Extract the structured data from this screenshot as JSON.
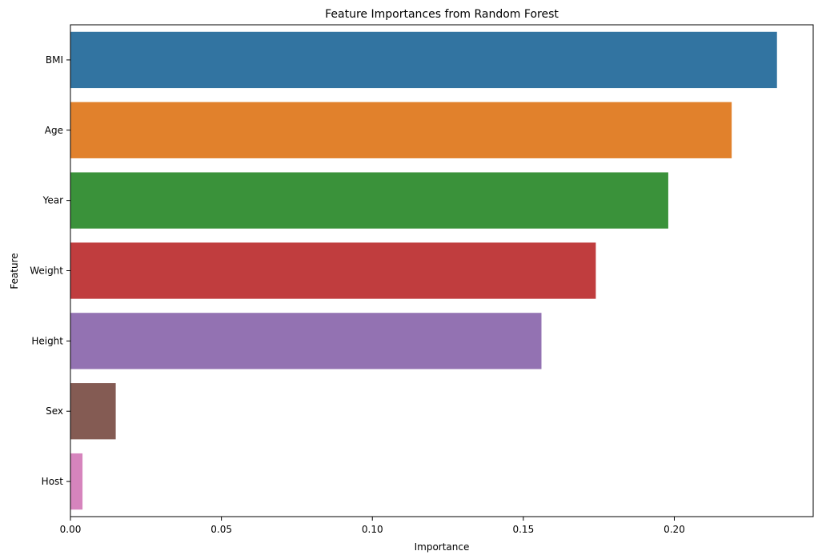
{
  "chart_data": {
    "type": "bar",
    "orientation": "horizontal",
    "title": "Feature Importances from Random Forest",
    "xlabel": "Importance",
    "ylabel": "Feature",
    "categories": [
      "BMI",
      "Age",
      "Year",
      "Weight",
      "Height",
      "Sex",
      "Host"
    ],
    "values": [
      0.234,
      0.219,
      0.198,
      0.174,
      0.156,
      0.015,
      0.004
    ],
    "colors": [
      "#3274a1",
      "#e1812c",
      "#3a923a",
      "#c03d3e",
      "#9372b2",
      "#845b53",
      "#d684bd"
    ],
    "xlim": [
      0,
      0.246
    ],
    "xticks": [
      0.0,
      0.05,
      0.1,
      0.15,
      0.2
    ],
    "xtick_labels": [
      "0.00",
      "0.05",
      "0.10",
      "0.15",
      "0.20"
    ],
    "grid": false,
    "legend": "none"
  }
}
